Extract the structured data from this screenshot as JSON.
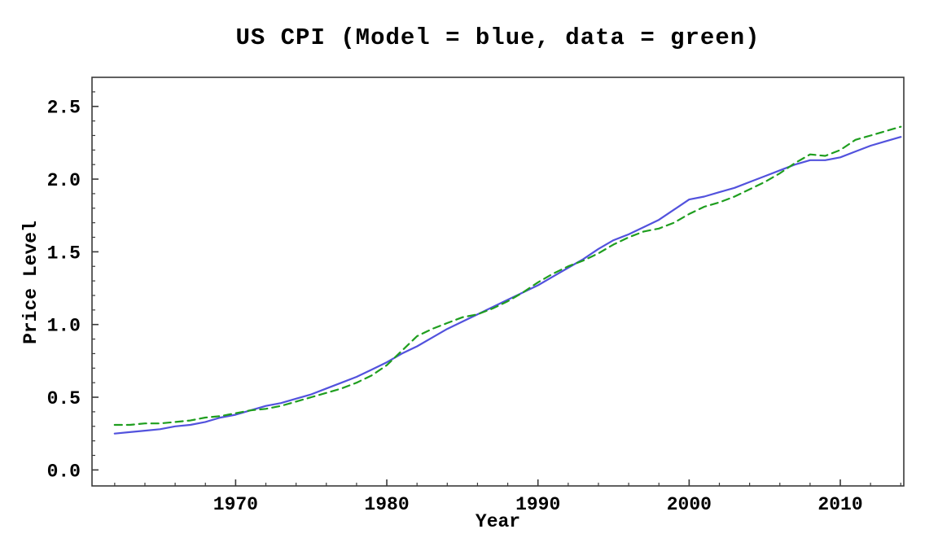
{
  "title": "US CPI (Model = blue, data = green)",
  "chart_data": {
    "type": "line",
    "title": "US CPI (Model = blue, data = green)",
    "xlabel": "Year",
    "ylabel": "Price Level",
    "xlim": [
      1960.5,
      2014.2
    ],
    "ylim": [
      -0.11,
      2.7
    ],
    "xticks": [
      1970,
      1980,
      1990,
      2000,
      2010
    ],
    "xtick_labels": [
      "1970",
      "1980",
      "1990",
      "2000",
      "2010"
    ],
    "yticks": [
      0.0,
      0.5,
      1.0,
      1.5,
      2.0,
      2.5
    ],
    "ytick_labels": [
      "0.0",
      "0.5",
      "1.0",
      "1.5",
      "2.0",
      "2.5"
    ],
    "grid": false,
    "legend_position": "none (encoded in title)",
    "frame_color": "#3a3a3a",
    "x": [
      1962,
      1963,
      1964,
      1965,
      1966,
      1967,
      1968,
      1969,
      1970,
      1971,
      1972,
      1973,
      1974,
      1975,
      1976,
      1977,
      1978,
      1979,
      1980,
      1981,
      1982,
      1983,
      1984,
      1985,
      1986,
      1987,
      1988,
      1989,
      1990,
      1991,
      1992,
      1993,
      1994,
      1995,
      1996,
      1997,
      1998,
      1999,
      2000,
      2001,
      2002,
      2003,
      2004,
      2005,
      2006,
      2007,
      2008,
      2009,
      2010,
      2011,
      2012,
      2013,
      2014
    ],
    "series": [
      {
        "name": "Model",
        "color": "#5252dd",
        "style": "solid",
        "values": [
          0.25,
          0.26,
          0.27,
          0.28,
          0.3,
          0.31,
          0.33,
          0.36,
          0.38,
          0.41,
          0.44,
          0.46,
          0.49,
          0.52,
          0.56,
          0.6,
          0.64,
          0.69,
          0.74,
          0.8,
          0.85,
          0.91,
          0.97,
          1.02,
          1.07,
          1.12,
          1.17,
          1.22,
          1.27,
          1.33,
          1.39,
          1.45,
          1.52,
          1.58,
          1.62,
          1.67,
          1.72,
          1.79,
          1.86,
          1.88,
          1.91,
          1.94,
          1.98,
          2.02,
          2.06,
          2.1,
          2.13,
          2.13,
          2.15,
          2.19,
          2.23,
          2.26,
          2.29
        ]
      },
      {
        "name": "data",
        "color": "#1f9e1f",
        "style": "dashed",
        "values": [
          0.31,
          0.31,
          0.32,
          0.32,
          0.33,
          0.34,
          0.36,
          0.37,
          0.39,
          0.41,
          0.42,
          0.44,
          0.47,
          0.5,
          0.53,
          0.56,
          0.6,
          0.65,
          0.72,
          0.82,
          0.92,
          0.97,
          1.01,
          1.05,
          1.07,
          1.11,
          1.16,
          1.22,
          1.29,
          1.35,
          1.4,
          1.44,
          1.49,
          1.55,
          1.6,
          1.64,
          1.66,
          1.7,
          1.76,
          1.81,
          1.84,
          1.88,
          1.93,
          1.98,
          2.04,
          2.11,
          2.17,
          2.16,
          2.2,
          2.27,
          2.3,
          2.33,
          2.36
        ]
      }
    ]
  }
}
